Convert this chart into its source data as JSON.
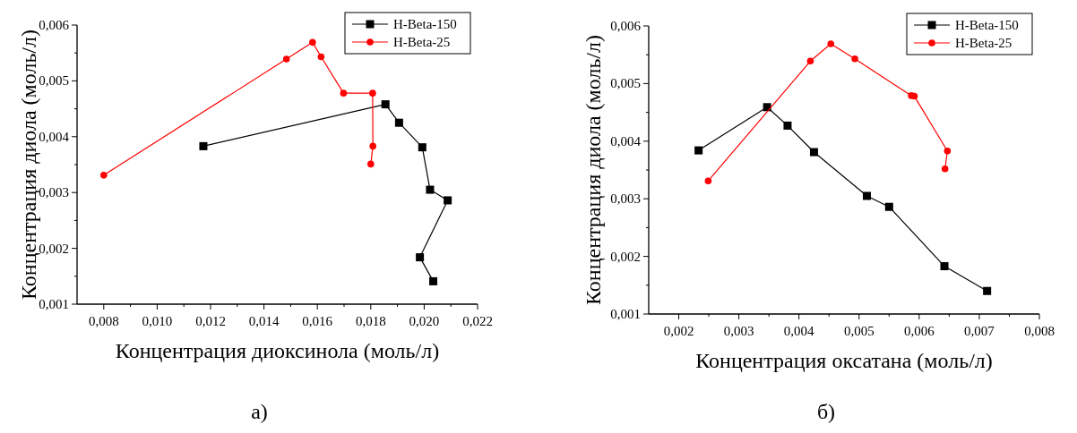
{
  "chart_data": [
    {
      "type": "line",
      "xlabel": "Концентрация диоксинола (моль/л)",
      "ylabel": "Концентрация диола (моль/л)",
      "annotations": [
        "а)"
      ],
      "legend": "top right",
      "marker": "square",
      "line_style": "solid",
      "grid": false,
      "xlim": [
        0.007,
        0.022
      ],
      "xticks": [
        {
          "value": 0.008,
          "label": "0,008"
        },
        {
          "value": 0.01,
          "label": "0,010"
        },
        {
          "value": 0.012,
          "label": "0,012"
        },
        {
          "value": 0.014,
          "label": "0,014"
        },
        {
          "value": 0.016,
          "label": "0,016"
        },
        {
          "value": 0.018,
          "label": "0,018"
        },
        {
          "value": 0.02,
          "label": "0,020"
        },
        {
          "value": 0.022,
          "label": "0,022"
        },
        {
          "value": 0.009,
          "label": null
        },
        {
          "value": 0.011,
          "label": null
        },
        {
          "value": 0.013,
          "label": null
        },
        {
          "value": 0.015,
          "label": null
        },
        {
          "value": 0.017,
          "label": null
        },
        {
          "value": 0.019,
          "label": null
        },
        {
          "value": 0.021,
          "label": null
        }
      ],
      "ylim": [
        0.001,
        0.006
      ],
      "yticks": [
        {
          "value": 0.001,
          "label": "0,001"
        },
        {
          "value": 0.002,
          "label": "0,002"
        },
        {
          "value": 0.003,
          "label": "0,003"
        },
        {
          "value": 0.004,
          "label": "0,004"
        },
        {
          "value": 0.005,
          "label": "0,005"
        },
        {
          "value": 0.006,
          "label": "0,006"
        },
        {
          "value": 0.0015,
          "label": null
        },
        {
          "value": 0.0025,
          "label": null
        },
        {
          "value": 0.0035,
          "label": null
        },
        {
          "value": 0.0045,
          "label": null
        },
        {
          "value": 0.0055,
          "label": null
        }
      ],
      "series": [
        {
          "name": "H-Beta-150",
          "color": "#000000",
          "marker": "square",
          "x": [
            0.01173,
            0.01855,
            0.01906,
            0.01993,
            0.02022,
            0.02088,
            0.01984,
            0.02034
          ],
          "values": [
            0.00383,
            0.00458,
            0.00425,
            0.00381,
            0.00305,
            0.00286,
            0.00184,
            0.00141
          ]
        },
        {
          "name": "H-Beta-25",
          "color": "#ff0000",
          "marker": "circle",
          "x": [
            0.008,
            0.01484,
            0.01582,
            0.01614,
            0.01698,
            0.01807,
            0.01808,
            0.018
          ],
          "values": [
            0.00331,
            0.00539,
            0.00569,
            0.00543,
            0.00478,
            0.00478,
            0.00383,
            0.00351
          ]
        }
      ]
    },
    {
      "type": "line",
      "xlabel": "Концентрация оксатана (моль/л)",
      "ylabel": "Концентрация диола (моль/л)",
      "annotations": [
        "б)"
      ],
      "legend": "top right",
      "marker": "square",
      "line_style": "solid",
      "grid": false,
      "xlim": [
        0.0015,
        0.008
      ],
      "xticks": [
        {
          "value": 0.002,
          "label": "0,002"
        },
        {
          "value": 0.003,
          "label": "0,003"
        },
        {
          "value": 0.004,
          "label": "0,004"
        },
        {
          "value": 0.005,
          "label": "0,005"
        },
        {
          "value": 0.006,
          "label": "0,006"
        },
        {
          "value": 0.007,
          "label": "0,007"
        },
        {
          "value": 0.008,
          "label": "0,008"
        },
        {
          "value": 0.0025,
          "label": null
        },
        {
          "value": 0.0035,
          "label": null
        },
        {
          "value": 0.0045,
          "label": null
        },
        {
          "value": 0.0055,
          "label": null
        },
        {
          "value": 0.0065,
          "label": null
        },
        {
          "value": 0.0075,
          "label": null
        }
      ],
      "ylim": [
        0.001,
        0.006
      ],
      "yticks": [
        {
          "value": 0.001,
          "label": "0,001"
        },
        {
          "value": 0.002,
          "label": "0,002"
        },
        {
          "value": 0.003,
          "label": "0,003"
        },
        {
          "value": 0.004,
          "label": "0,004"
        },
        {
          "value": 0.005,
          "label": "0,005"
        },
        {
          "value": 0.006,
          "label": "0,006"
        },
        {
          "value": 0.0015,
          "label": null
        },
        {
          "value": 0.0025,
          "label": null
        },
        {
          "value": 0.0035,
          "label": null
        },
        {
          "value": 0.0045,
          "label": null
        },
        {
          "value": 0.0055,
          "label": null
        }
      ],
      "series": [
        {
          "name": "H-Beta-150",
          "color": "#000000",
          "marker": "square",
          "x": [
            0.00233,
            0.00347,
            0.00381,
            0.00425,
            0.00513,
            0.0055,
            0.00642,
            0.00713
          ],
          "values": [
            0.00384,
            0.00459,
            0.00427,
            0.00381,
            0.00305,
            0.00286,
            0.00183,
            0.0014
          ]
        },
        {
          "name": "H-Beta-25",
          "color": "#ff0000",
          "marker": "circle",
          "x": [
            0.00249,
            0.00419,
            0.00453,
            0.00493,
            0.00587,
            0.00592,
            0.00647,
            0.00643
          ],
          "values": [
            0.00331,
            0.00539,
            0.00569,
            0.00543,
            0.00479,
            0.00478,
            0.00383,
            0.00352
          ]
        }
      ]
    }
  ]
}
